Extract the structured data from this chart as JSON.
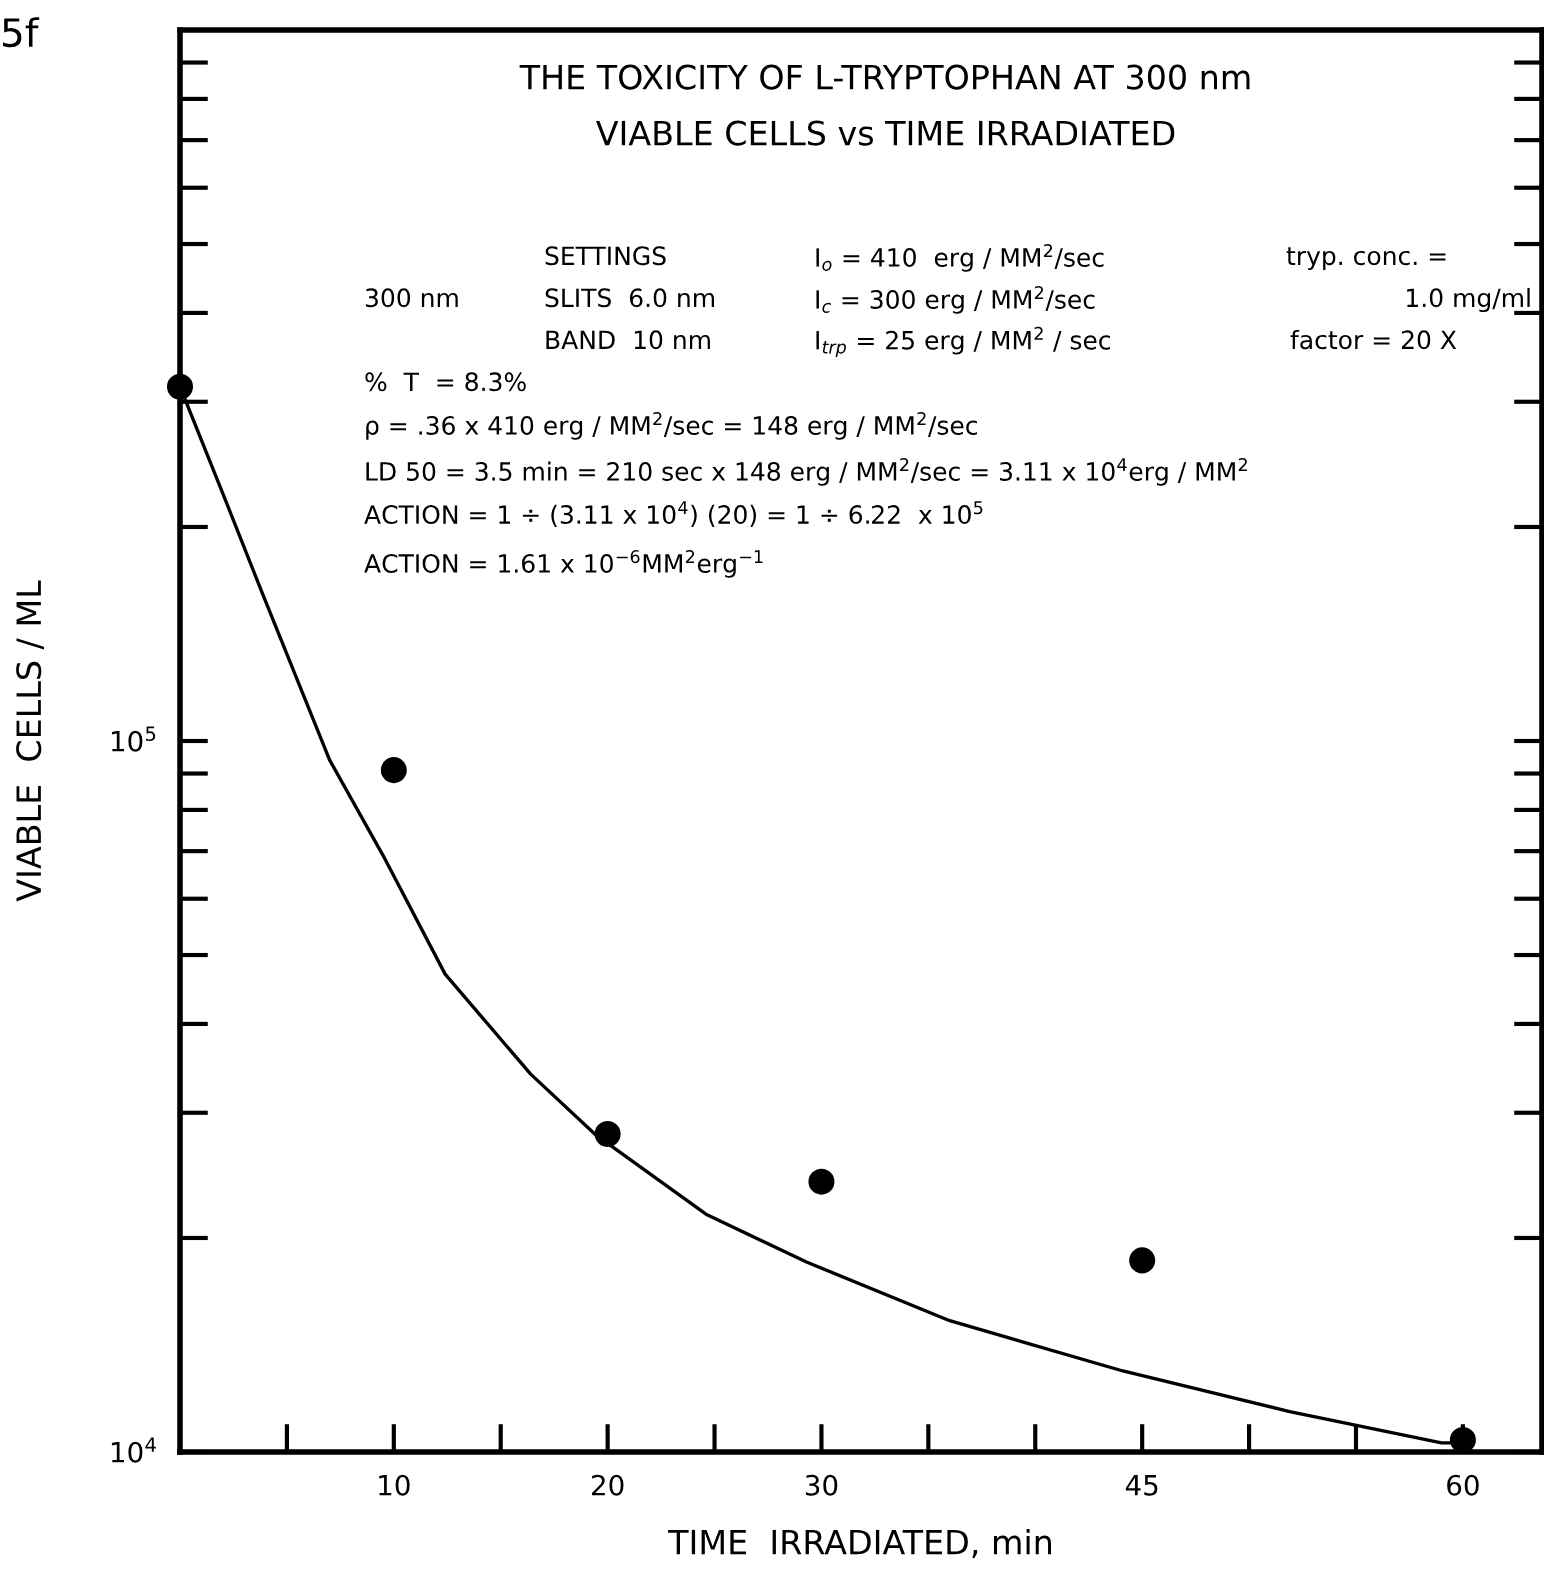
{
  "chart_data": {
    "type": "scatter",
    "title": "THE TOXICITY OF L-TRYPTOPHAN AT 300 nm",
    "subtitle": "VIABLE CELLS vs TIME IRRADIATED",
    "xlabel": "TIME  IRRADIATED, min",
    "ylabel": "VIABLE  CELLS / ML",
    "annotations": [
      "5f",
      "SETTINGS",
      "I$_{o}$ = 410  erg / MM$^{2}$/sec",
      "tryp. conc. =",
      "300 nm",
      "SLITS  6.0 nm",
      "I$_{c}$ = 300 erg / MM$^{2}$/sec",
      "1.0 mg/ml",
      "BAND  10 nm",
      "I$_{trp}$ = 25 erg / MM$^{2}$ / sec",
      "factor = 20 X",
      "%  T  = 8.3%",
      "ρ = .36 x 410 erg / MM$^{2}$/sec = 148 erg / MM$^{2}$/sec",
      "LD 50 = 3.5 min = 210 sec x 148 erg / MM$^{2}$/sec = 3.11 x 10$^{4}$erg / MM$^{2}$",
      "ACTION = 1 ÷ (3.11 x 10$^{4}$) (20) = 1 ÷ 6.22  x 10$^{5}$",
      "ACTION = 1.61 x 10$^{−6}$MM$^{2}$erg$^{−1}$"
    ],
    "x": [
      0,
      10,
      20,
      30,
      45,
      60
    ],
    "series": [
      {
        "color": "#000000",
        "marker": "circle",
        "values": [
          315000,
          91000,
          28000,
          24000,
          18600,
          10400
        ]
      },
      {
        "type": "line",
        "color": "#000000",
        "marker": "none",
        "line_style": "solid",
        "x": [
          0,
          2,
          3.9,
          7,
          9.5,
          12.4,
          16.4,
          19.4,
          24.6,
          29.3,
          36,
          44.1,
          51.9,
          59,
          60
        ],
        "values": [
          315000,
          223000,
          160000,
          94000,
          69000,
          47000,
          34000,
          28000,
          21600,
          18500,
          15300,
          13000,
          11400,
          10300,
          10300
        ]
      }
    ],
    "log": "y",
    "xlim": [
      0,
      63.7
    ],
    "xticks": [
      {
        "value": 5,
        "label": null
      },
      10,
      {
        "value": 15,
        "label": null
      },
      20,
      {
        "value": 25,
        "label": null
      },
      30,
      {
        "value": 35,
        "label": null
      },
      {
        "value": 40,
        "label": null
      },
      45,
      {
        "value": 50,
        "label": null
      },
      {
        "value": 55,
        "label": null
      },
      60
    ],
    "ylim": [
      10000,
      1000000
    ],
    "yticks": [
      {
        "value": 10000,
        "label": "10$^{4}$"
      },
      {
        "value": 20000,
        "label": null
      },
      {
        "value": 30000,
        "label": null
      },
      {
        "value": 40000,
        "label": null
      },
      {
        "value": 50000,
        "label": null
      },
      {
        "value": 60000,
        "label": null
      },
      {
        "value": 70000,
        "label": null
      },
      {
        "value": 80000,
        "label": null
      },
      {
        "value": 90000,
        "label": null
      },
      {
        "value": 100000,
        "label": "10$^{5}$"
      },
      {
        "value": 200000,
        "label": null
      },
      {
        "value": 300000,
        "label": null
      },
      {
        "value": 400000,
        "label": null
      },
      {
        "value": 500000,
        "label": null
      },
      {
        "value": 600000,
        "label": null
      },
      {
        "value": 700000,
        "label": null
      },
      {
        "value": 800000,
        "label": null
      },
      {
        "value": 900000,
        "label": null
      }
    ],
    "grid": false,
    "legend": false
  }
}
